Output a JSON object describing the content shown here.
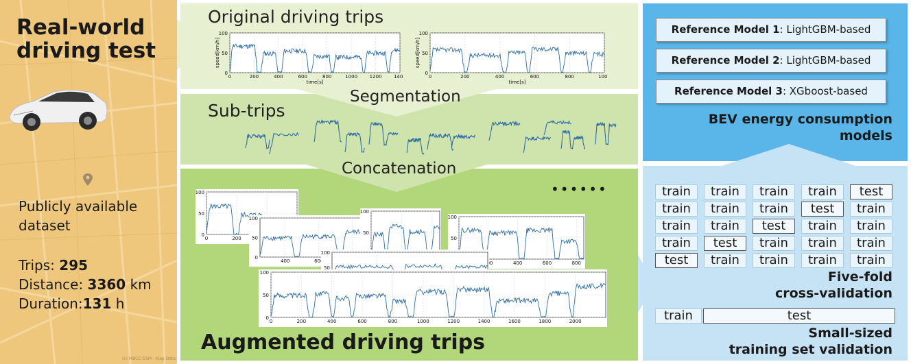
{
  "left": {
    "title_line1": "Real-world",
    "title_line2": "driving test",
    "desc_line1": "Publicly available",
    "desc_line2": "dataset",
    "trips_label": "Trips: ",
    "trips_value": "295",
    "distance_label": "Distance: ",
    "distance_value": "3360",
    "distance_unit": " km",
    "duration_label": "Duration:",
    "duration_value": "131",
    "duration_unit": " h",
    "map_credit": "(c) MBCC OSM - Map Data"
  },
  "middle": {
    "original_title": "Original driving trips",
    "segmentation_label": "Segmentation",
    "subtrips_title": "Sub-trips",
    "concatenation_label": "Concatenation",
    "ellipsis": "••••••",
    "augmented_title": "Augmented driving trips"
  },
  "right": {
    "models": [
      {
        "name": "Reference Model 1",
        "desc": ": LightGBM-based"
      },
      {
        "name": "Reference Model 2",
        "desc": ": LightGBM-based"
      },
      {
        "name": "Reference Model 3",
        "desc": ": XGboost-based"
      }
    ],
    "models_title_line1": "BEV energy consumption",
    "models_title_line2": "models",
    "cv_grid": [
      [
        "train",
        "train",
        "train",
        "train",
        "test"
      ],
      [
        "train",
        "train",
        "train",
        "test",
        "train"
      ],
      [
        "train",
        "train",
        "test",
        "train",
        "train"
      ],
      [
        "train",
        "test",
        "train",
        "train",
        "train"
      ],
      [
        "test",
        "train",
        "train",
        "train",
        "train"
      ]
    ],
    "cv_title_line1": "Five-fold",
    "cv_title_line2": "cross-validation",
    "small_train": "train",
    "small_test": "test",
    "small_title_line1": "Small-sized",
    "small_title_line2": "training set validation"
  },
  "colors": {
    "left_bg": "#efc77c",
    "orig_bg": "#e7f0d1",
    "sub_bg": "#cfe4ad",
    "aug_bg": "#b2d77a",
    "models_bg": "#5ab6e8",
    "cv_bg": "#c6e3f5",
    "trace": "#2e6da4"
  },
  "chart_data": [
    {
      "type": "line",
      "id": "orig1",
      "ylabel": "speed[km/h]",
      "xlabel": "time[s]",
      "xticks": [
        "0",
        "200",
        "400",
        "600",
        "800",
        "1000",
        "1200",
        "1400"
      ],
      "yticks": [
        "0",
        "50",
        "100"
      ],
      "xlim": [
        0,
        1400
      ],
      "ylim": [
        0,
        100
      ]
    },
    {
      "type": "line",
      "id": "orig2",
      "ylabel": "speed[km/h]",
      "xlabel": "time[s]",
      "xticks": [
        "0",
        "200",
        "400",
        "600",
        "800",
        "1000"
      ],
      "yticks": [
        "0",
        "50",
        "100"
      ],
      "xlim": [
        0,
        1000
      ],
      "ylim": [
        0,
        100
      ]
    },
    {
      "type": "line",
      "id": "aug1",
      "xticks": [
        "0",
        "200",
        "400",
        "600"
      ],
      "yticks": [
        "0",
        "50",
        "100"
      ],
      "xlim": [
        0,
        600
      ],
      "ylim": [
        0,
        100
      ]
    },
    {
      "type": "line",
      "id": "aug2",
      "xticks": [
        "400",
        "600",
        "800"
      ],
      "yticks": [
        "0",
        "50",
        "100"
      ],
      "xlim": [
        250,
        850
      ],
      "ylim": [
        0,
        100
      ]
    },
    {
      "type": "line",
      "id": "aug3",
      "xticks": [
        "0",
        "200",
        "400"
      ],
      "yticks": [
        "0",
        "50",
        "100"
      ],
      "xlim": [
        0,
        450
      ],
      "ylim": [
        0,
        100
      ]
    },
    {
      "type": "line",
      "id": "aug4",
      "xticks": [
        "0",
        "200",
        "400",
        "600",
        "800"
      ],
      "yticks": [
        "0",
        "50",
        "100"
      ],
      "xlim": [
        0,
        850
      ],
      "ylim": [
        0,
        100
      ]
    },
    {
      "type": "line",
      "id": "aug5",
      "xticks": [
        "600"
      ],
      "yticks": [
        "0",
        "50",
        "100"
      ],
      "xlim": [
        520,
        800
      ],
      "ylim": [
        0,
        100
      ]
    },
    {
      "type": "line",
      "id": "aug6",
      "xticks": [
        "0",
        "200",
        "400",
        "600",
        "800",
        "1000",
        "1200",
        "1400",
        "1600",
        "1800",
        "2000"
      ],
      "yticks": [
        "0",
        "50",
        "100"
      ],
      "xlim": [
        0,
        2200
      ],
      "ylim": [
        0,
        100
      ]
    }
  ]
}
